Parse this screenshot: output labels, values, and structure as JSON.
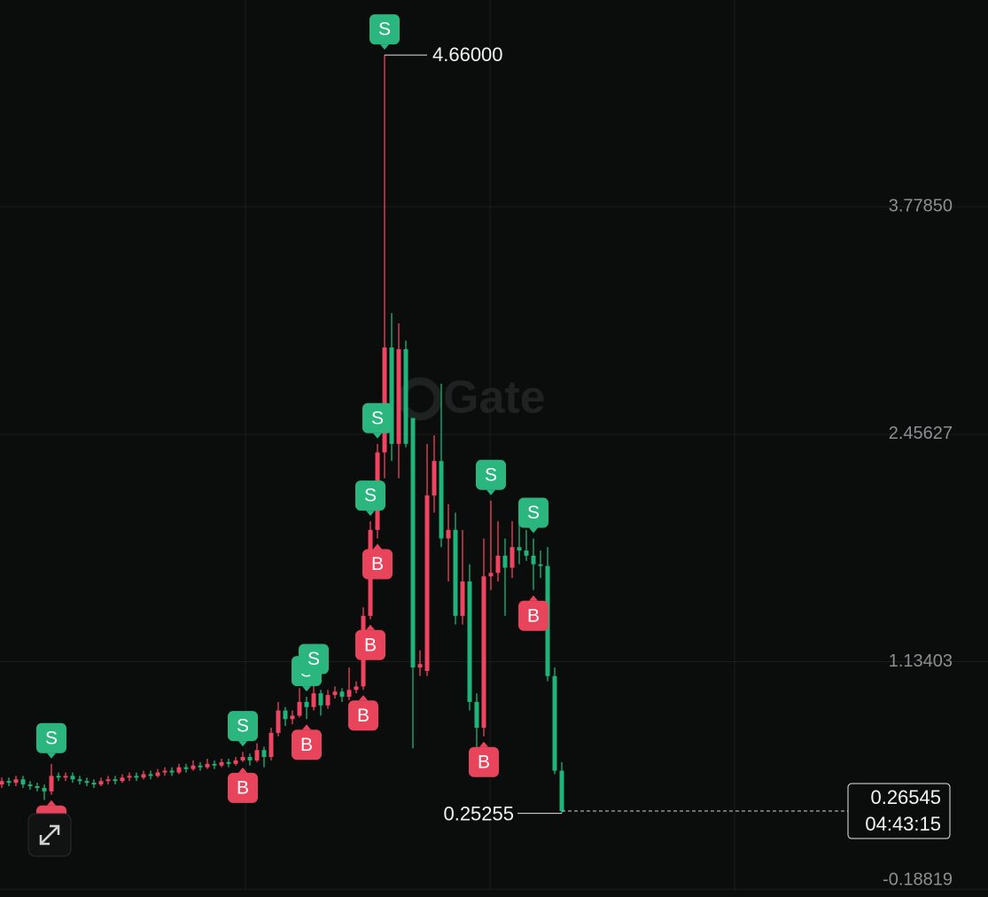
{
  "chart_data": {
    "type": "candlestick",
    "watermark": "Gate",
    "up_color": "#ef4560",
    "down_color": "#1fb57a",
    "ylim": [
      -0.234,
      4.98
    ],
    "yticks": [
      {
        "value": 3.7785,
        "label": "3.77850"
      },
      2.45627,
      1.13403,
      -0.18819
    ],
    "grid": true,
    "candles": [
      [
        0.42,
        0.46,
        0.4,
        0.44
      ],
      [
        0.44,
        0.46,
        0.41,
        0.43
      ],
      [
        0.43,
        0.47,
        0.41,
        0.45
      ],
      [
        0.45,
        0.47,
        0.4,
        0.42
      ],
      [
        0.42,
        0.44,
        0.39,
        0.41
      ],
      [
        0.41,
        0.43,
        0.38,
        0.4
      ],
      [
        0.4,
        0.42,
        0.33,
        0.38
      ],
      [
        0.38,
        0.54,
        0.36,
        0.47
      ],
      [
        0.47,
        0.49,
        0.44,
        0.46
      ],
      [
        0.46,
        0.49,
        0.44,
        0.47
      ],
      [
        0.47,
        0.49,
        0.43,
        0.45
      ],
      [
        0.45,
        0.47,
        0.42,
        0.44
      ],
      [
        0.44,
        0.46,
        0.41,
        0.43
      ],
      [
        0.43,
        0.45,
        0.4,
        0.42
      ],
      [
        0.42,
        0.46,
        0.41,
        0.44
      ],
      [
        0.44,
        0.47,
        0.42,
        0.45
      ],
      [
        0.45,
        0.47,
        0.42,
        0.44
      ],
      [
        0.44,
        0.48,
        0.43,
        0.46
      ],
      [
        0.46,
        0.49,
        0.44,
        0.47
      ],
      [
        0.47,
        0.49,
        0.44,
        0.46
      ],
      [
        0.46,
        0.5,
        0.45,
        0.48
      ],
      [
        0.48,
        0.5,
        0.45,
        0.47
      ],
      [
        0.47,
        0.51,
        0.46,
        0.49
      ],
      [
        0.49,
        0.52,
        0.47,
        0.5
      ],
      [
        0.5,
        0.52,
        0.47,
        0.49
      ],
      [
        0.49,
        0.54,
        0.48,
        0.52
      ],
      [
        0.52,
        0.54,
        0.49,
        0.51
      ],
      [
        0.51,
        0.56,
        0.5,
        0.53
      ],
      [
        0.53,
        0.55,
        0.5,
        0.52
      ],
      [
        0.52,
        0.57,
        0.51,
        0.54
      ],
      [
        0.54,
        0.56,
        0.51,
        0.53
      ],
      [
        0.53,
        0.57,
        0.52,
        0.55
      ],
      [
        0.55,
        0.57,
        0.52,
        0.54
      ],
      [
        0.54,
        0.58,
        0.53,
        0.56
      ],
      [
        0.56,
        0.61,
        0.55,
        0.58
      ],
      [
        0.58,
        0.6,
        0.53,
        0.56
      ],
      [
        0.56,
        0.66,
        0.55,
        0.62
      ],
      [
        0.62,
        0.64,
        0.52,
        0.58
      ],
      [
        0.58,
        0.75,
        0.56,
        0.72
      ],
      [
        0.72,
        0.9,
        0.7,
        0.85
      ],
      [
        0.85,
        0.87,
        0.76,
        0.8
      ],
      [
        0.8,
        0.85,
        0.77,
        0.82
      ],
      [
        0.82,
        0.98,
        0.81,
        0.9
      ],
      [
        0.9,
        0.93,
        0.8,
        0.87
      ],
      [
        0.87,
        1.0,
        0.85,
        0.95
      ],
      [
        0.95,
        0.97,
        0.82,
        0.88
      ],
      [
        0.88,
        0.97,
        0.86,
        0.94
      ],
      [
        0.94,
        0.99,
        0.92,
        0.96
      ],
      [
        0.96,
        0.98,
        0.9,
        0.93
      ],
      [
        0.93,
        1.1,
        0.91,
        0.97
      ],
      [
        0.97,
        1.02,
        0.95,
        0.99
      ],
      [
        0.99,
        1.45,
        0.97,
        1.4
      ],
      [
        1.4,
        1.95,
        1.38,
        1.9
      ],
      [
        1.9,
        2.4,
        1.85,
        2.35
      ],
      [
        2.35,
        4.66,
        2.2,
        2.96
      ],
      [
        2.96,
        3.16,
        2.3,
        2.4
      ],
      [
        2.4,
        3.1,
        2.2,
        2.95
      ],
      [
        2.95,
        3.0,
        2.38,
        2.4
      ],
      [
        2.55,
        2.55,
        0.63,
        1.1
      ],
      [
        1.1,
        1.2,
        1.05,
        1.12
      ],
      [
        1.08,
        2.4,
        1.05,
        2.1
      ],
      [
        2.1,
        2.45,
        2.0,
        2.3
      ],
      [
        2.3,
        2.75,
        1.8,
        1.85
      ],
      [
        1.85,
        2.05,
        1.6,
        1.9
      ],
      [
        1.9,
        2.0,
        1.35,
        1.4
      ],
      [
        1.4,
        1.9,
        1.35,
        1.6
      ],
      [
        1.6,
        1.7,
        0.85,
        0.9
      ],
      [
        0.9,
        0.95,
        0.6,
        0.75
      ],
      [
        0.75,
        1.85,
        0.7,
        1.63
      ],
      [
        1.63,
        2.07,
        1.55,
        1.65
      ],
      [
        1.65,
        1.95,
        1.6,
        1.75
      ],
      [
        1.75,
        1.85,
        1.4,
        1.68
      ],
      [
        1.68,
        1.95,
        1.62,
        1.8
      ],
      [
        1.8,
        1.95,
        1.7,
        1.78
      ],
      [
        1.78,
        1.9,
        1.72,
        1.75
      ],
      [
        1.75,
        1.85,
        1.55,
        1.7
      ],
      [
        1.7,
        1.78,
        1.62,
        1.69
      ],
      [
        1.69,
        1.8,
        1.02,
        1.05
      ],
      [
        1.05,
        1.1,
        0.48,
        0.5
      ],
      [
        0.5,
        0.55,
        0.25255,
        0.26545
      ]
    ],
    "markers": [
      {
        "text": "S",
        "candle": 7
      },
      {
        "text": "B",
        "candle": 7
      },
      {
        "text": "S",
        "candle": 34
      },
      {
        "text": "B",
        "candle": 34
      },
      {
        "text": "S",
        "candle": 43
      },
      {
        "text": "S",
        "candle": 44
      },
      {
        "text": "B",
        "candle": 43
      },
      {
        "text": "B",
        "candle": 51
      },
      {
        "text": "S",
        "candle": 52
      },
      {
        "text": "B",
        "candle": 52
      },
      {
        "text": "S",
        "candle": 53
      },
      {
        "text": "B",
        "candle": 53
      },
      {
        "text": "S",
        "candle": 54
      },
      {
        "text": "S",
        "candle": 69
      },
      {
        "text": "B",
        "candle": 68
      },
      {
        "text": "S",
        "candle": 75
      },
      {
        "text": "B",
        "candle": 75
      }
    ],
    "high_label": {
      "value": 4.66,
      "label": "4.66000"
    },
    "low_label": 0.25255,
    "last_price": 0.26545,
    "countdown": "04:43:15"
  }
}
